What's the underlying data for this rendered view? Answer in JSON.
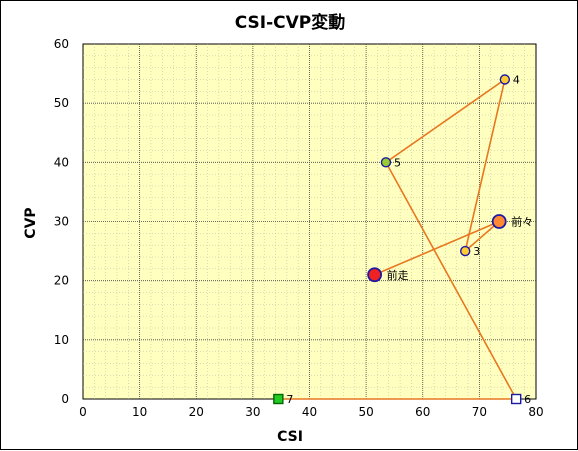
{
  "chart_data": {
    "type": "scatter",
    "title": "CSI-CVP変動",
    "xlabel": "CSI",
    "ylabel": "CVP",
    "xlim": [
      0,
      80
    ],
    "ylim": [
      0,
      60
    ],
    "xticks": [
      "0",
      "10",
      "20",
      "30",
      "40",
      "50",
      "60",
      "70",
      "80"
    ],
    "yticks": [
      "0",
      "10",
      "20",
      "30",
      "40",
      "50",
      "60"
    ],
    "grid": true,
    "colors": {
      "plot_bg": "#ffffc0",
      "line": "#e87722",
      "grid": "#555555"
    },
    "points": [
      {
        "label": "7",
        "x": 34.5,
        "y": 0,
        "marker": "square",
        "fill": "#22cc22",
        "stroke": "#006600",
        "size": "small"
      },
      {
        "label": "6",
        "x": 76.5,
        "y": 0,
        "marker": "square",
        "fill": "#ffffff",
        "stroke": "#1a1aa6",
        "size": "small"
      },
      {
        "label": "5",
        "x": 53.5,
        "y": 40,
        "marker": "circle",
        "fill": "#9acd32",
        "stroke": "#1a1aa6",
        "size": "small"
      },
      {
        "label": "4",
        "x": 74.5,
        "y": 54,
        "marker": "circle",
        "fill": "#ffcc33",
        "stroke": "#1a1aa6",
        "size": "small"
      },
      {
        "label": "3",
        "x": 67.5,
        "y": 25,
        "marker": "circle",
        "fill": "#ffcc33",
        "stroke": "#1a1aa6",
        "size": "small"
      },
      {
        "label": "前々",
        "x": 73.5,
        "y": 30,
        "marker": "circle",
        "fill": "#ff8833",
        "stroke": "#1a1aa6",
        "size": "large"
      },
      {
        "label": "前走",
        "x": 51.5,
        "y": 21,
        "marker": "circle",
        "fill": "#ee2222",
        "stroke": "#1a1aa6",
        "size": "large"
      }
    ]
  }
}
